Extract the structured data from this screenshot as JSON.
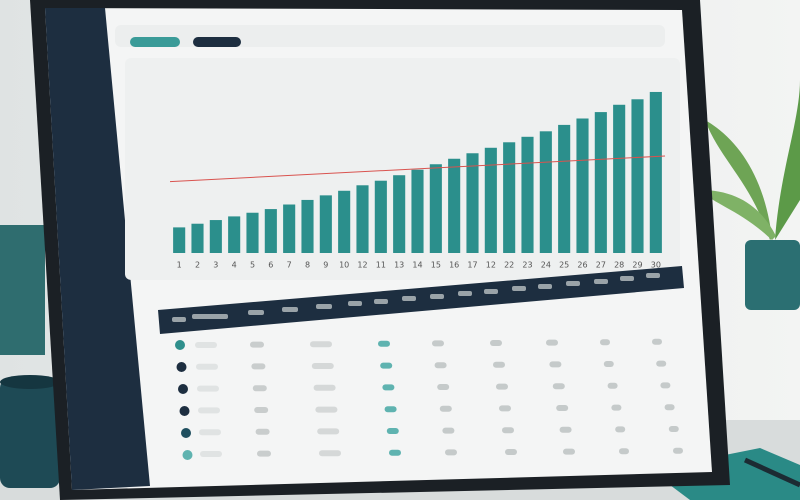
{
  "chart_data": {
    "type": "bar",
    "categories": [
      "1",
      "2",
      "3",
      "4",
      "5",
      "6",
      "7",
      "8",
      "9",
      "10",
      "12",
      "11",
      "13",
      "14",
      "15",
      "16",
      "17",
      "12",
      "22",
      "23",
      "24",
      "25",
      "26",
      "27",
      "28",
      "29",
      "30"
    ],
    "values": [
      28,
      32,
      36,
      40,
      44,
      48,
      53,
      58,
      63,
      68,
      74,
      79,
      85,
      91,
      97,
      103,
      109,
      115,
      121,
      127,
      133,
      140,
      147,
      154,
      162,
      168,
      176
    ],
    "color": "#2b8f8c",
    "ylim": [
      0,
      200
    ],
    "reference_line": {
      "color": "#d9534f",
      "values": [
        78,
        106
      ]
    }
  }
}
